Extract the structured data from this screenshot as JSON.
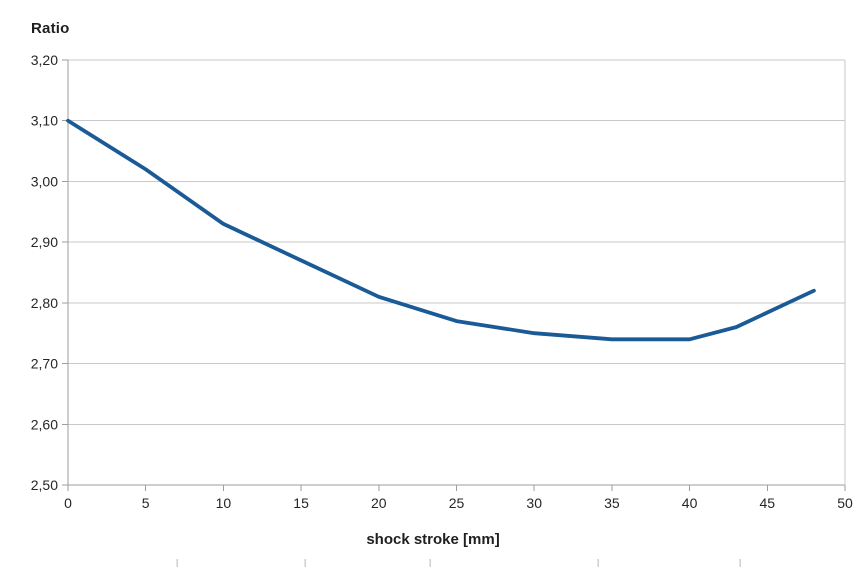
{
  "page": {
    "background": "#ffffff"
  },
  "chart": {
    "y_axis_title": "Ratio",
    "x_axis_title": "shock stroke [mm]"
  },
  "chart_data": {
    "type": "line",
    "title": "",
    "ylabel": "Ratio",
    "xlabel": "shock stroke [mm]",
    "x": [
      0,
      5,
      10,
      15,
      20,
      25,
      30,
      35,
      40,
      43,
      48
    ],
    "values": [
      3.1,
      3.02,
      2.93,
      2.87,
      2.81,
      2.77,
      2.75,
      2.74,
      2.74,
      2.76,
      2.82
    ],
    "xlim": [
      0,
      50
    ],
    "ylim": [
      2.5,
      3.2
    ],
    "x_tick_values": [
      0,
      5,
      10,
      15,
      20,
      25,
      30,
      35,
      40,
      45,
      50
    ],
    "x_tick_labels": [
      "0",
      "5",
      "10",
      "15",
      "20",
      "25",
      "30",
      "35",
      "40",
      "45",
      "50"
    ],
    "y_tick_values": [
      2.5,
      2.6,
      2.7,
      2.8,
      2.9,
      3.0,
      3.1,
      3.2
    ],
    "y_tick_labels": [
      "2,50",
      "2,60",
      "2,70",
      "2,80",
      "2,90",
      "3,00",
      "3,10",
      "3,20"
    ],
    "grid": "horizontal-only",
    "legend": "none",
    "line_color": "#1A5A96",
    "grid_color": "#C9C9C9",
    "axis_color": "#9E9E9E",
    "text_color": "#262626"
  },
  "footer": {
    "tick_marks_x": [
      177,
      305,
      430,
      598,
      740
    ],
    "tick_color": "#CFCFCF"
  }
}
